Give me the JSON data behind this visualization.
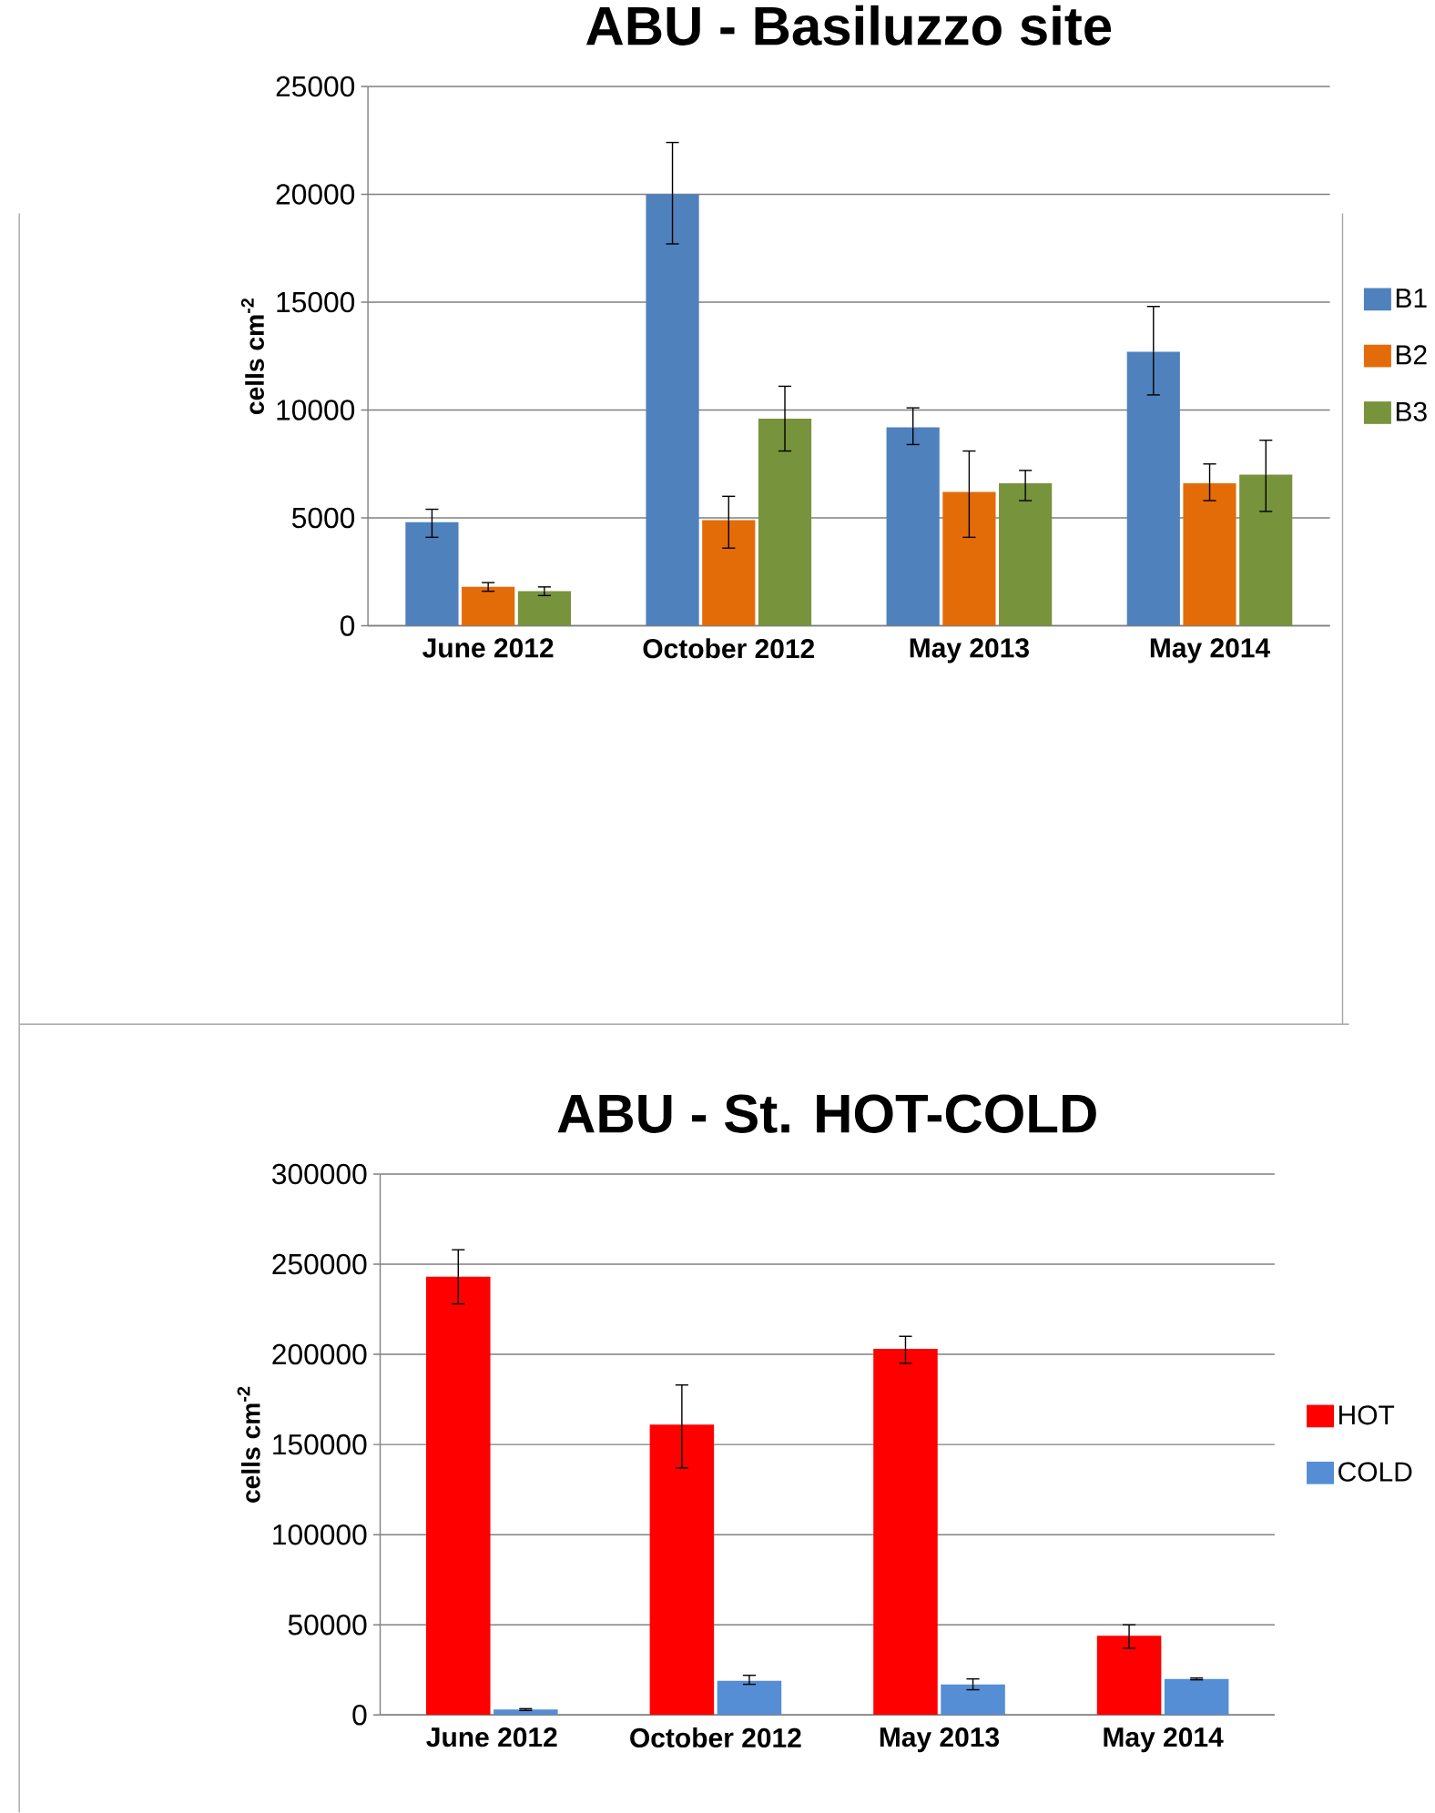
{
  "chart_data": [
    {
      "type": "bar",
      "title": "ABU - Basiluzzo site",
      "ylabel": "cells cm$^{-2}$",
      "categories": [
        "June 2012",
        "October 2012",
        "May 2013",
        "May  2014"
      ],
      "series": [
        {
          "name": "B1",
          "color": "#4f81bd",
          "values": [
            4800,
            20000,
            9200,
            12700
          ],
          "errors": [
            [
              4100,
              5400
            ],
            [
              17700,
              22400
            ],
            [
              8400,
              10100
            ],
            [
              10700,
              14800
            ]
          ]
        },
        {
          "name": "B2",
          "color": "#e36c09",
          "values": [
            1800,
            4900,
            6200,
            6600
          ],
          "errors": [
            [
              1600,
              2000
            ],
            [
              3600,
              6000
            ],
            [
              4100,
              8100
            ],
            [
              5800,
              7500
            ]
          ]
        },
        {
          "name": "B3",
          "color": "#77933c",
          "values": [
            1600,
            9600,
            6600,
            7000
          ],
          "errors": [
            [
              1400,
              1800
            ],
            [
              8100,
              11100
            ],
            [
              5800,
              7200
            ],
            [
              5300,
              8600
            ]
          ]
        }
      ],
      "ylim": [
        0,
        25000
      ],
      "yticks": [
        0,
        5000,
        10000,
        15000,
        20000,
        25000
      ],
      "grid": "y",
      "legend": "right"
    },
    {
      "type": "bar",
      "title": "ABU - St. HOT-COLD",
      "ylabel": "cells cm$^{-2}$",
      "categories": [
        "June 2012",
        "October 2012",
        "May 2013",
        "May  2014"
      ],
      "series": [
        {
          "name": "HOT",
          "color": "#ff0000",
          "values": [
            243000,
            161000,
            203000,
            44000
          ],
          "errors": [
            [
              228000,
              258000
            ],
            [
              137000,
              183000
            ],
            [
              195000,
              210000
            ],
            [
              37000,
              50000
            ]
          ]
        },
        {
          "name": "COLD",
          "color": "#558ed5",
          "values": [
            3000,
            19000,
            17000,
            20000
          ],
          "errors": [
            [
              2500,
              3500
            ],
            [
              17000,
              22000
            ],
            [
              14000,
              20000
            ],
            [
              19500,
              20500
            ]
          ]
        }
      ],
      "ylim": [
        0,
        300000
      ],
      "yticks": [
        0,
        50000,
        100000,
        150000,
        200000,
        250000,
        300000
      ],
      "grid": "y",
      "legend": "right"
    }
  ]
}
